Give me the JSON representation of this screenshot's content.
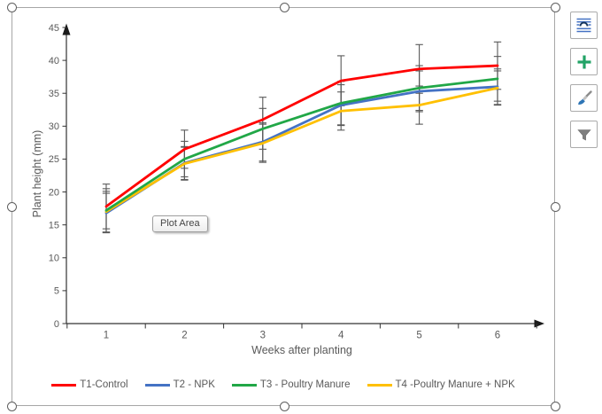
{
  "tooltip": {
    "label": "Plot Area"
  },
  "side_buttons": [
    {
      "icon": "layout-options-icon"
    },
    {
      "icon": "chart-elements-plus-icon"
    },
    {
      "icon": "chart-styles-brush-icon"
    },
    {
      "icon": "chart-filters-funnel-icon"
    }
  ],
  "colors": {
    "t1": "#FF0000",
    "t2": "#4472C4",
    "t3": "#21A747",
    "t4": "#FFC000",
    "axis": "#333333",
    "tick_label": "#595959",
    "error_bar": "#595959"
  },
  "chart_data": {
    "type": "line",
    "x": [
      1,
      2,
      3,
      4,
      5,
      6
    ],
    "xlabel": "Weeks after planting",
    "ylabel": "Plant height (mm)",
    "ylim": [
      0,
      45
    ],
    "ytick_step": 5,
    "grid": false,
    "error_bars": true,
    "legend_position": "bottom",
    "series": [
      {
        "name": "T1-Control",
        "color": "#FF0000",
        "values": [
          17.8,
          26.5,
          31.0,
          36.9,
          38.7,
          39.2
        ],
        "errors": [
          3.4,
          2.9,
          3.4,
          3.8,
          3.7,
          3.6
        ]
      },
      {
        "name": "T2 - NPK",
        "color": "#4472C4",
        "values": [
          16.8,
          24.4,
          27.6,
          33.2,
          35.3,
          36.0
        ],
        "errors": [
          3.0,
          2.5,
          2.9,
          3.1,
          3.1,
          2.7
        ]
      },
      {
        "name": "T3 - Poultry Manure",
        "color": "#21A747",
        "values": [
          17.2,
          25.0,
          29.6,
          33.5,
          35.8,
          37.2
        ],
        "errors": [
          3.3,
          2.7,
          3.1,
          3.3,
          3.4,
          3.4
        ]
      },
      {
        "name": "T4 -Poultry Manure + NPK",
        "color": "#FFC000",
        "values": [
          17.0,
          24.3,
          27.4,
          32.3,
          33.2,
          35.8
        ],
        "errors": [
          3.1,
          2.5,
          2.9,
          2.9,
          2.9,
          2.6
        ]
      }
    ]
  }
}
